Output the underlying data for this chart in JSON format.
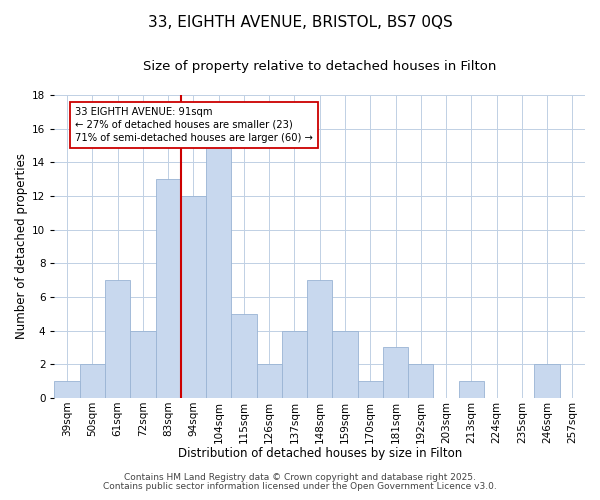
{
  "title": "33, EIGHTH AVENUE, BRISTOL, BS7 0QS",
  "subtitle": "Size of property relative to detached houses in Filton",
  "xlabel": "Distribution of detached houses by size in Filton",
  "ylabel": "Number of detached properties",
  "bar_color": "#c8d8ee",
  "bar_edge_color": "#9ab4d4",
  "categories": [
    "39sqm",
    "50sqm",
    "61sqm",
    "72sqm",
    "83sqm",
    "94sqm",
    "104sqm",
    "115sqm",
    "126sqm",
    "137sqm",
    "148sqm",
    "159sqm",
    "170sqm",
    "181sqm",
    "192sqm",
    "203sqm",
    "213sqm",
    "224sqm",
    "235sqm",
    "246sqm",
    "257sqm"
  ],
  "values": [
    1,
    2,
    7,
    4,
    13,
    12,
    15,
    5,
    2,
    4,
    7,
    4,
    1,
    3,
    2,
    0,
    1,
    0,
    0,
    2,
    0
  ],
  "ylim": [
    0,
    18
  ],
  "yticks": [
    0,
    2,
    4,
    6,
    8,
    10,
    12,
    14,
    16,
    18
  ],
  "vline_index": 4.5,
  "vline_color": "#cc0000",
  "annotation_text": "33 EIGHTH AVENUE: 91sqm\n← 27% of detached houses are smaller (23)\n71% of semi-detached houses are larger (60) →",
  "annotation_box_color": "#ffffff",
  "annotation_box_edge": "#cc0000",
  "footer_line1": "Contains HM Land Registry data © Crown copyright and database right 2025.",
  "footer_line2": "Contains public sector information licensed under the Open Government Licence v3.0.",
  "background_color": "#ffffff",
  "grid_color": "#c0d0e4",
  "title_fontsize": 11,
  "subtitle_fontsize": 9.5,
  "label_fontsize": 8.5,
  "tick_fontsize": 7.5,
  "footer_fontsize": 6.5
}
